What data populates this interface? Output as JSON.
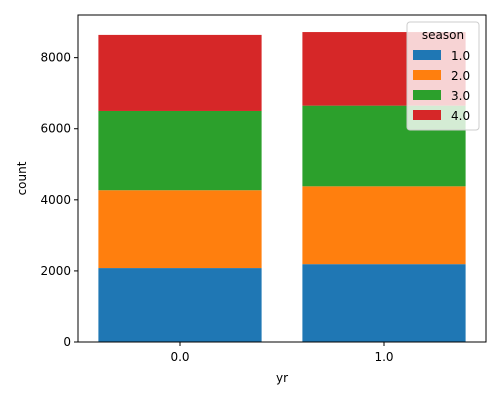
{
  "chart_data": {
    "type": "bar",
    "stacked": true,
    "categories": [
      "0.0",
      "1.0"
    ],
    "xlabel": "yr",
    "ylabel": "count",
    "ylim": [
      0,
      9200
    ],
    "yticks": [
      0,
      2000,
      4000,
      6000,
      8000
    ],
    "grid": false,
    "legend": {
      "title": "season",
      "placement": "top-right"
    },
    "series": [
      {
        "name": "1.0",
        "color": "#1f77b4",
        "values": [
          2080,
          2190
        ]
      },
      {
        "name": "2.0",
        "color": "#ff7f0e",
        "values": [
          2190,
          2190
        ]
      },
      {
        "name": "3.0",
        "color": "#2ca02c",
        "values": [
          2230,
          2270
        ]
      },
      {
        "name": "4.0",
        "color": "#d62728",
        "values": [
          2140,
          2070
        ]
      }
    ]
  }
}
